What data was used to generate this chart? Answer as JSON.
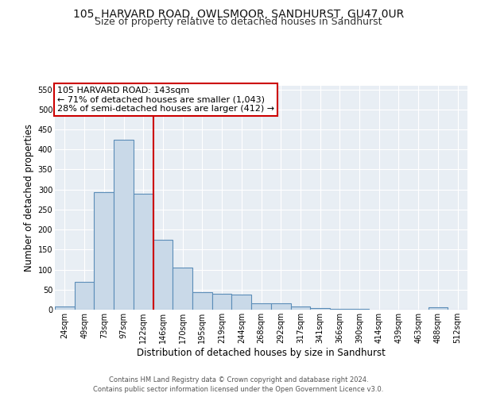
{
  "title_line1": "105, HARVARD ROAD, OWLSMOOR, SANDHURST, GU47 0UR",
  "title_line2": "Size of property relative to detached houses in Sandhurst",
  "xlabel": "Distribution of detached houses by size in Sandhurst",
  "ylabel": "Number of detached properties",
  "bar_labels": [
    "24sqm",
    "49sqm",
    "73sqm",
    "97sqm",
    "122sqm",
    "146sqm",
    "170sqm",
    "195sqm",
    "219sqm",
    "244sqm",
    "268sqm",
    "292sqm",
    "317sqm",
    "341sqm",
    "366sqm",
    "390sqm",
    "414sqm",
    "439sqm",
    "463sqm",
    "488sqm",
    "512sqm"
  ],
  "bar_heights": [
    7,
    70,
    293,
    425,
    290,
    175,
    105,
    43,
    40,
    37,
    16,
    16,
    7,
    3,
    1,
    1,
    0,
    0,
    0,
    5,
    0
  ],
  "bar_color": "#c9d9e8",
  "bar_edge_color": "#5b8db8",
  "bar_edge_width": 0.8,
  "red_line_x": 5.0,
  "red_line_color": "#cc0000",
  "annotation_text": "105 HARVARD ROAD: 143sqm\n← 71% of detached houses are smaller (1,043)\n28% of semi-detached houses are larger (412) →",
  "annotation_box_color": "#ffffff",
  "annotation_box_edge": "#cc0000",
  "ylim": [
    0,
    560
  ],
  "yticks": [
    0,
    50,
    100,
    150,
    200,
    250,
    300,
    350,
    400,
    450,
    500,
    550
  ],
  "bg_color": "#e8eef4",
  "grid_color": "#ffffff",
  "footer_line1": "Contains HM Land Registry data © Crown copyright and database right 2024.",
  "footer_line2": "Contains public sector information licensed under the Open Government Licence v3.0.",
  "title_fontsize": 10,
  "subtitle_fontsize": 9,
  "axis_label_fontsize": 8.5,
  "tick_fontsize": 7,
  "annotation_fontsize": 8,
  "footer_fontsize": 6
}
